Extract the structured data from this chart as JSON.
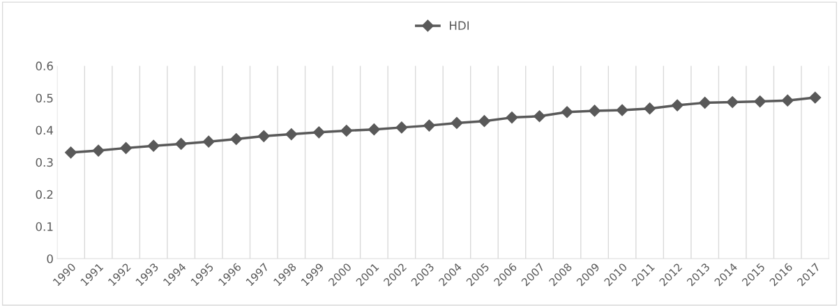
{
  "chart_data": {
    "type": "line",
    "categories": [
      "1990",
      "1991",
      "1992",
      "1993",
      "1994",
      "1995",
      "1996",
      "1997",
      "1998",
      "1999",
      "2000",
      "2001",
      "2002",
      "2003",
      "2004",
      "2005",
      "2006",
      "2007",
      "2008",
      "2009",
      "2010",
      "2011",
      "2012",
      "2013",
      "2014",
      "2015",
      "2016",
      "2017"
    ],
    "series": [
      {
        "name": "HDI",
        "color": "#595959",
        "values": [
          0.33,
          0.336,
          0.344,
          0.351,
          0.357,
          0.364,
          0.372,
          0.381,
          0.387,
          0.393,
          0.398,
          0.402,
          0.408,
          0.414,
          0.422,
          0.428,
          0.439,
          0.443,
          0.456,
          0.46,
          0.462,
          0.467,
          0.477,
          0.485,
          0.487,
          0.489,
          0.492,
          0.501
        ]
      }
    ],
    "ylim": [
      0,
      0.6
    ],
    "yticks": [
      0,
      0.1,
      0.2,
      0.3,
      0.4,
      0.5,
      0.6
    ],
    "grid": "x",
    "legend": "top",
    "marker": "diamond",
    "line_style": "solid"
  }
}
